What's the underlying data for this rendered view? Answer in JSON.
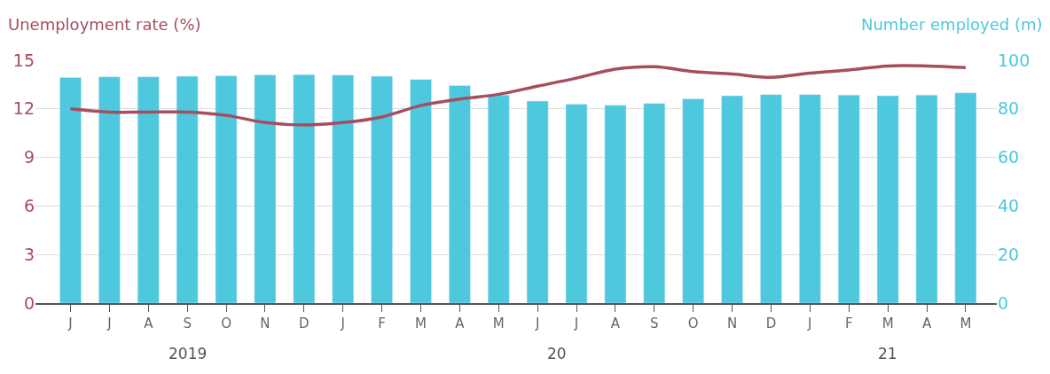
{
  "chart_data": {
    "type": "bar",
    "ylabel": "Unemployment rate (%)",
    "y2label": "Number employed (m)",
    "categories": [
      "J",
      "J",
      "A",
      "S",
      "O",
      "N",
      "D",
      "J",
      "F",
      "M",
      "A",
      "M",
      "J",
      "J",
      "A",
      "S",
      "O",
      "N",
      "D",
      "J",
      "F",
      "M",
      "A",
      "M"
    ],
    "series": [
      {
        "axis": "y2",
        "color": "#4ec8dc",
        "values": [
          92.9,
          93.2,
          93.2,
          93.4,
          93.6,
          94.0,
          94.1,
          93.9,
          93.4,
          92.1,
          89.6,
          85.7,
          83.2,
          81.9,
          81.5,
          82.2,
          84.1,
          85.4,
          85.9,
          85.9,
          85.7,
          85.4,
          85.7,
          86.6
        ]
      },
      {
        "type": "line",
        "axis": "y",
        "color": "#a64d5e",
        "line_style": "solid",
        "values": [
          12.0,
          11.8,
          11.8,
          11.8,
          11.6,
          11.15,
          11.0,
          11.15,
          11.5,
          12.2,
          12.6,
          12.9,
          13.4,
          13.9,
          14.45,
          14.6,
          14.3,
          14.15,
          13.95,
          14.2,
          14.4,
          14.65,
          14.65,
          14.55
        ]
      }
    ],
    "ylim": [
      0,
      15
    ],
    "yticks": [
      0,
      3,
      6,
      9,
      12,
      15
    ],
    "y2lim": [
      0,
      100
    ],
    "y2ticks": [
      0,
      20,
      40,
      60,
      80,
      100
    ],
    "grid": "y",
    "annotations": [
      "2019",
      "20",
      "21"
    ]
  }
}
